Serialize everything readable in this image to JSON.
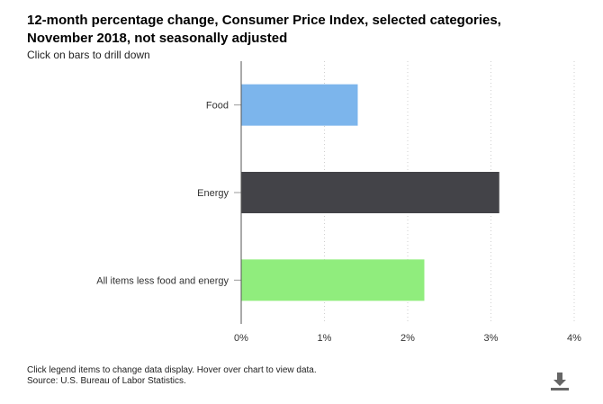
{
  "chart_data": {
    "type": "bar",
    "orientation": "horizontal",
    "title": "12-month percentage change, Consumer Price Index, selected categories, November 2018, not seasonally adjusted",
    "subtitle": "Click on bars to drill down",
    "categories": [
      "Food",
      "Energy",
      "All items less food and energy"
    ],
    "values": [
      1.4,
      3.1,
      2.2
    ],
    "colors": [
      "#7cb5ec",
      "#434348",
      "#90ed7d"
    ],
    "xlim": [
      0,
      4
    ],
    "ticks": [
      0,
      1,
      2,
      3,
      4
    ],
    "tick_labels": [
      "0%",
      "1%",
      "2%",
      "3%",
      "4%"
    ],
    "grid": "vertical dotted",
    "xlabel": "",
    "ylabel": ""
  },
  "footer": {
    "line1": "Click legend items to change data display. Hover over chart to view data.",
    "line2": "Source: U.S. Bureau of Labor Statistics."
  },
  "icons": {
    "download": "download-icon"
  }
}
